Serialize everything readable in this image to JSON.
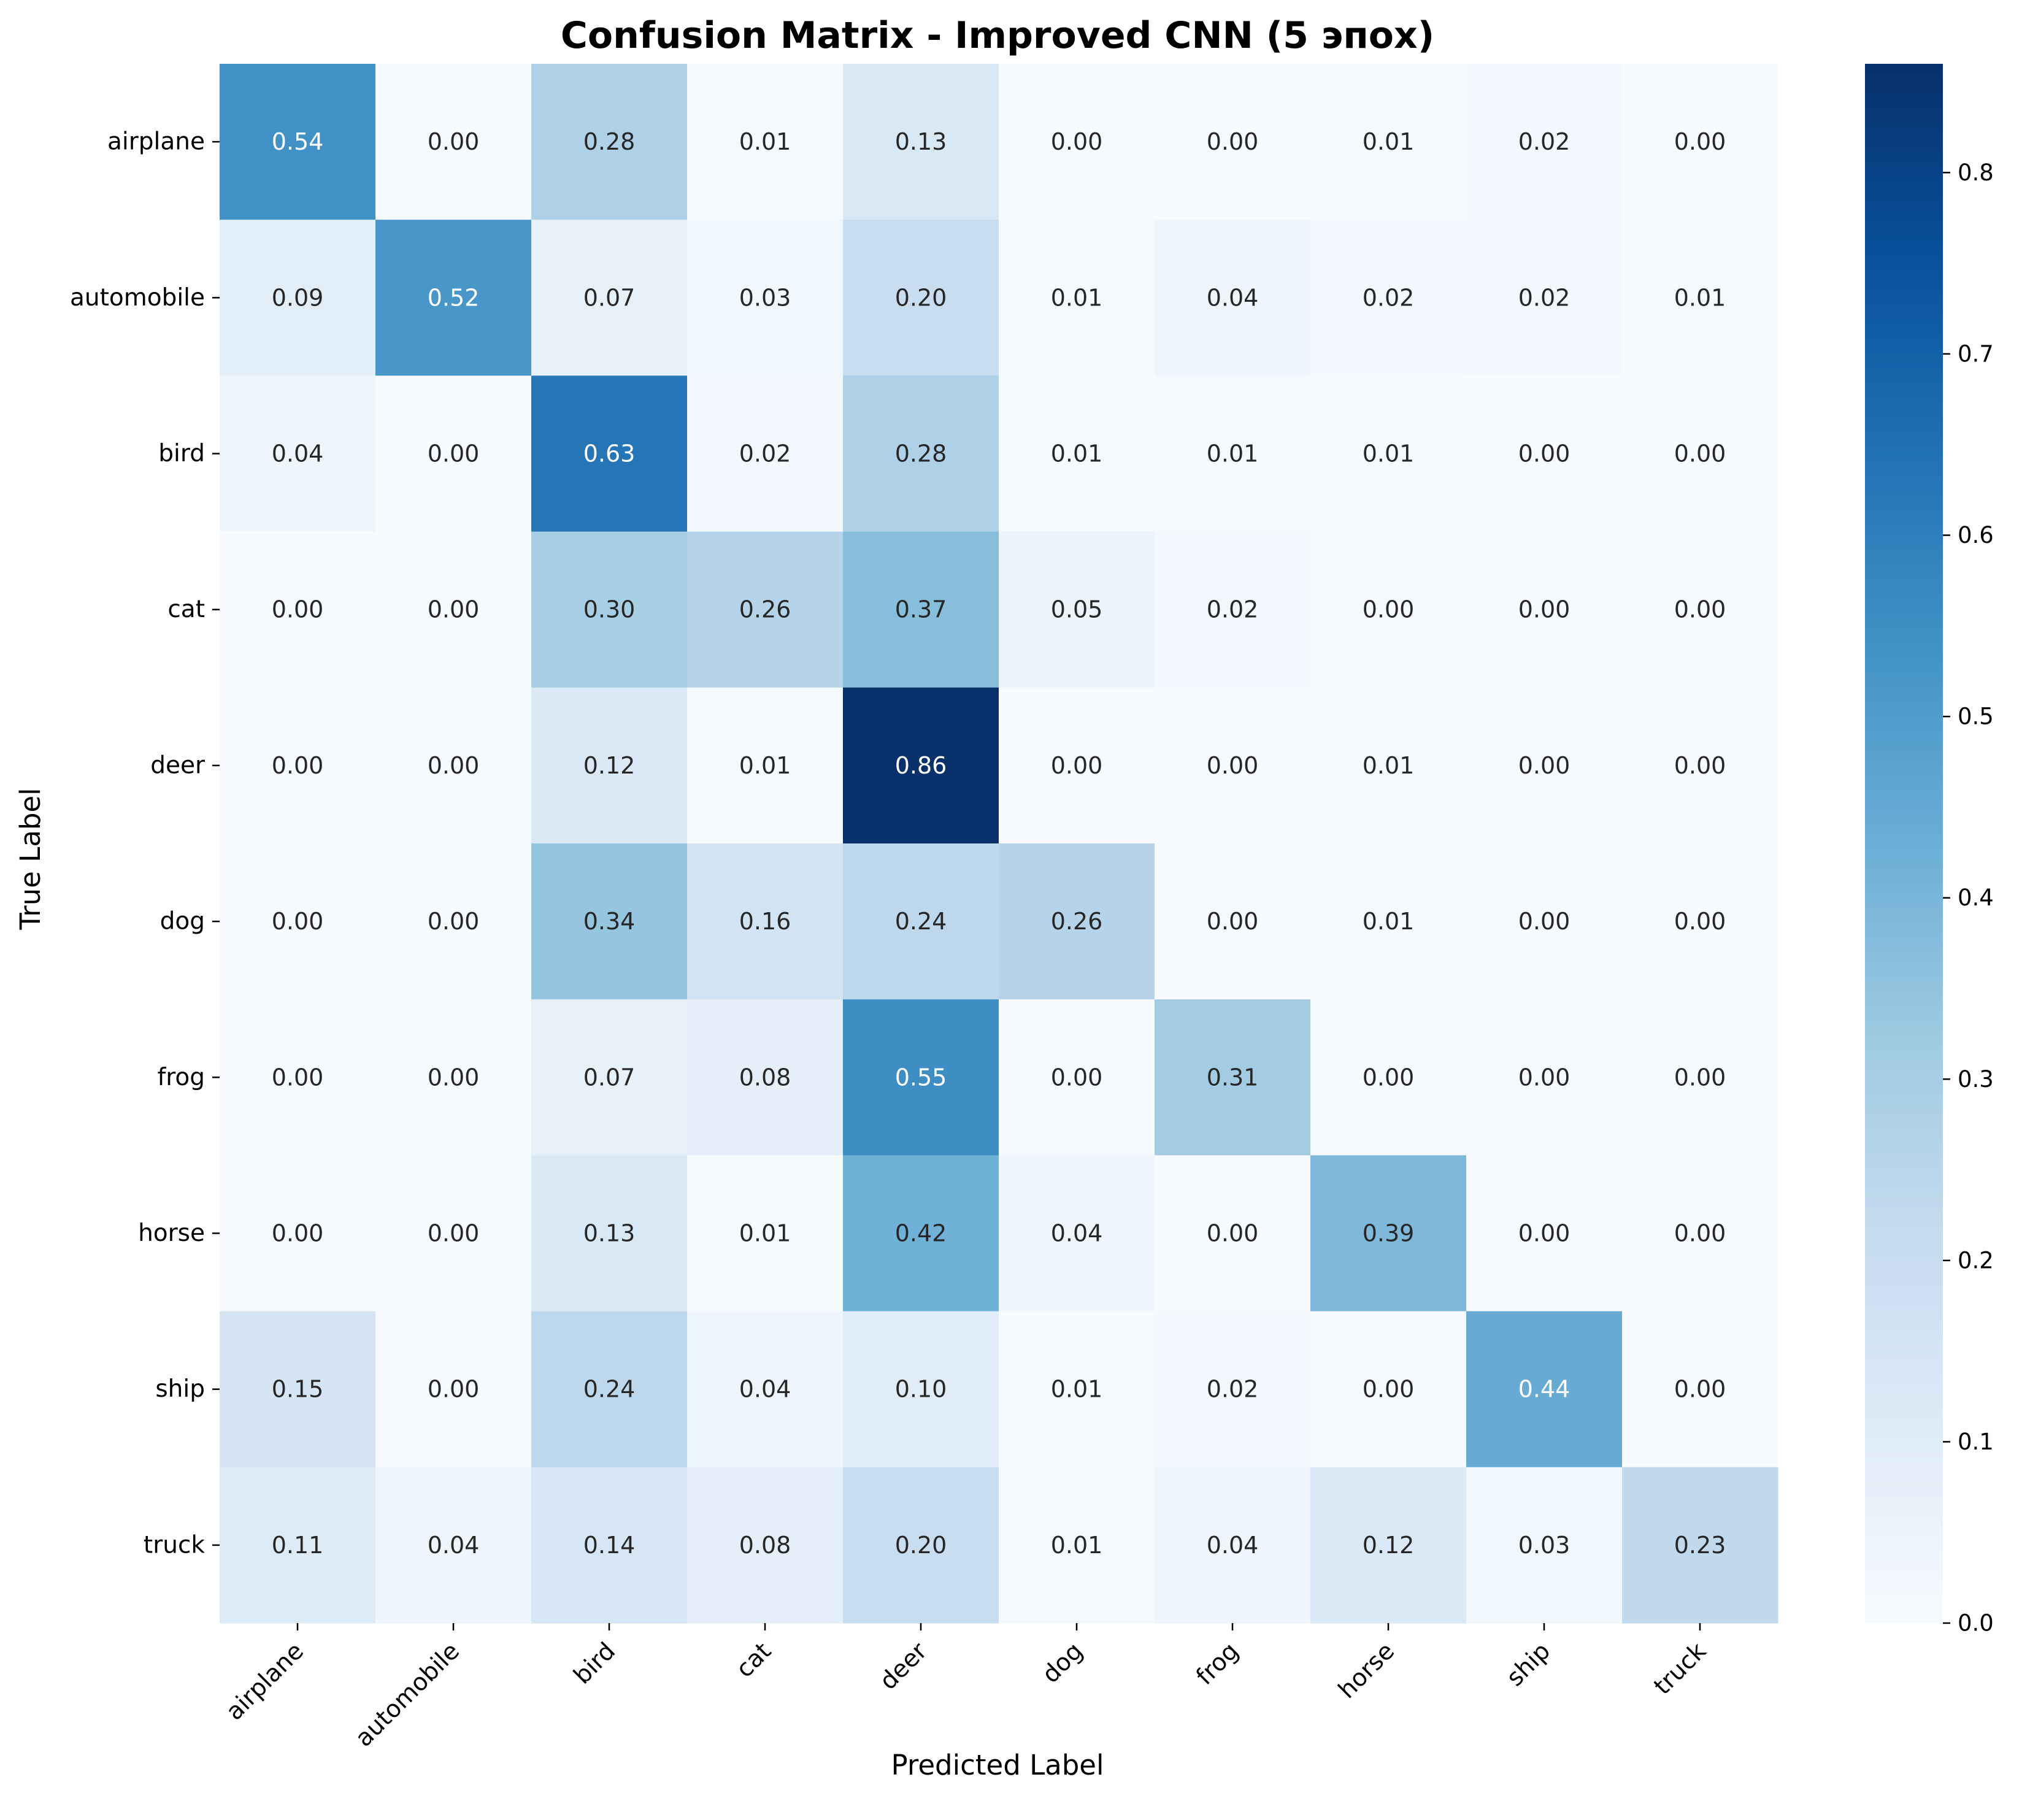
{
  "chart_data": {
    "type": "heatmap",
    "title": "Confusion Matrix - Improved CNN (5 эпох)",
    "xlabel": "Predicted Label",
    "ylabel": "True Label",
    "x_categories": [
      "airplane",
      "automobile",
      "bird",
      "cat",
      "deer",
      "dog",
      "frog",
      "horse",
      "ship",
      "truck"
    ],
    "y_categories": [
      "airplane",
      "automobile",
      "bird",
      "cat",
      "deer",
      "dog",
      "frog",
      "horse",
      "ship",
      "truck"
    ],
    "values": [
      [
        0.54,
        0.0,
        0.28,
        0.01,
        0.13,
        0.0,
        0.0,
        0.01,
        0.02,
        0.0
      ],
      [
        0.09,
        0.52,
        0.07,
        0.03,
        0.2,
        0.01,
        0.04,
        0.02,
        0.02,
        0.01
      ],
      [
        0.04,
        0.0,
        0.63,
        0.02,
        0.28,
        0.01,
        0.01,
        0.01,
        0.0,
        0.0
      ],
      [
        0.0,
        0.0,
        0.3,
        0.26,
        0.37,
        0.05,
        0.02,
        0.0,
        0.0,
        0.0
      ],
      [
        0.0,
        0.0,
        0.12,
        0.01,
        0.86,
        0.0,
        0.0,
        0.01,
        0.0,
        0.0
      ],
      [
        0.0,
        0.0,
        0.34,
        0.16,
        0.24,
        0.26,
        0.0,
        0.01,
        0.0,
        0.0
      ],
      [
        0.0,
        0.0,
        0.07,
        0.08,
        0.55,
        0.0,
        0.31,
        0.0,
        0.0,
        0.0
      ],
      [
        0.0,
        0.0,
        0.13,
        0.01,
        0.42,
        0.04,
        0.0,
        0.39,
        0.0,
        0.0
      ],
      [
        0.15,
        0.0,
        0.24,
        0.04,
        0.1,
        0.01,
        0.02,
        0.0,
        0.44,
        0.0
      ],
      [
        0.11,
        0.04,
        0.14,
        0.08,
        0.2,
        0.01,
        0.04,
        0.12,
        0.03,
        0.23
      ]
    ],
    "value_format": "2 decimals",
    "colormap": "Blues",
    "colorbar": {
      "range": [
        0.0,
        0.86
      ],
      "ticks": [
        0.0,
        0.1,
        0.2,
        0.3,
        0.4,
        0.5,
        0.6,
        0.7,
        0.8
      ],
      "tick_labels": [
        "0.0",
        "0.1",
        "0.2",
        "0.3",
        "0.4",
        "0.5",
        "0.6",
        "0.7",
        "0.8"
      ]
    },
    "colors": {
      "low": "#f7fbff",
      "high": "#08306b",
      "text_dark": "#262626",
      "text_light": "#ffffff"
    },
    "grid": false
  }
}
